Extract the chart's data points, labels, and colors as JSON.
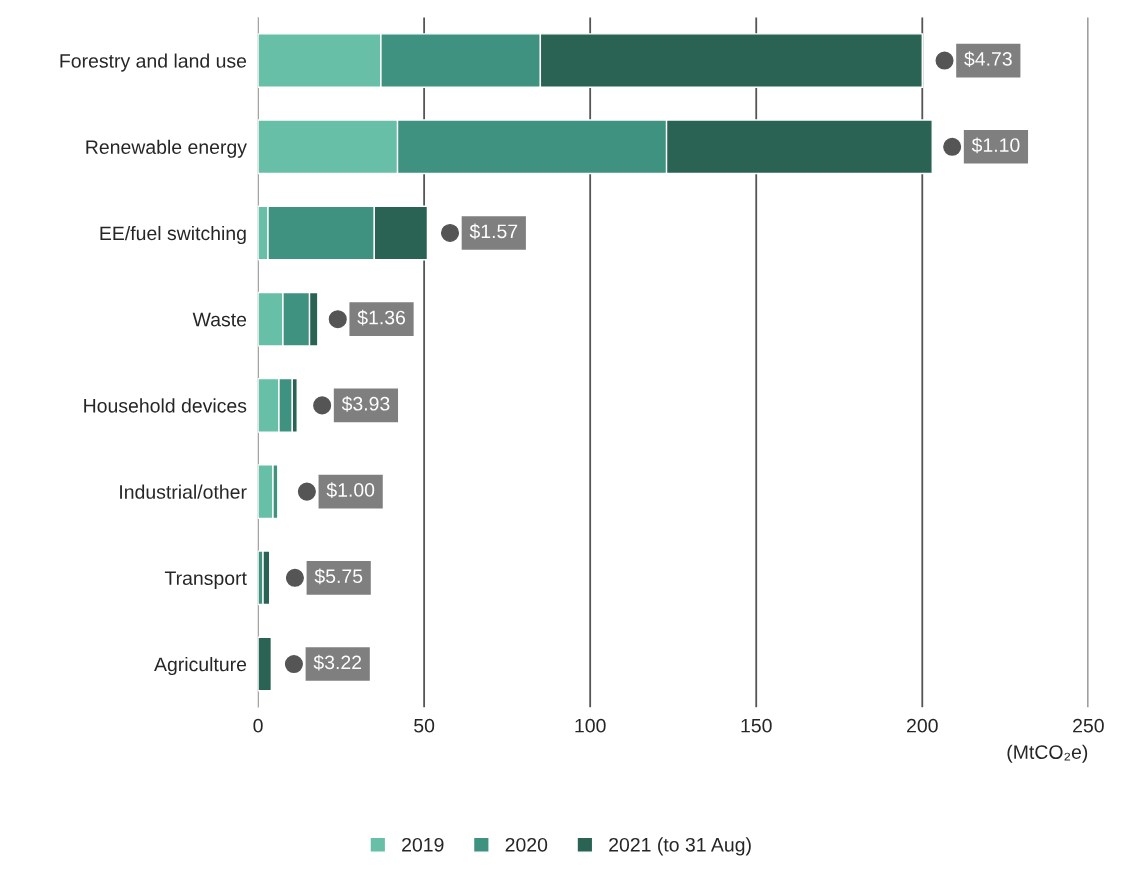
{
  "chart_data": {
    "type": "bar",
    "orientation": "horizontal",
    "stacked": true,
    "categories": [
      "Forestry and land use",
      "Renewable energy",
      "EE/fuel switching",
      "Waste",
      "Household devices",
      "Industrial/other",
      "Transport",
      "Agriculture"
    ],
    "series": [
      {
        "name": "2019",
        "color": "#66bfa6",
        "values": [
          37,
          42,
          3,
          7.5,
          6.3,
          4.5,
          null,
          null
        ]
      },
      {
        "name": "2020",
        "color": "#3f9180",
        "values": [
          48,
          81,
          32,
          8,
          4,
          1.5,
          1.5,
          null
        ]
      },
      {
        "name": "2021 (to 31 Aug)",
        "color": "#2a6354",
        "values": [
          115,
          80,
          16,
          2.5,
          1.5,
          0.3,
          2,
          4
        ]
      }
    ],
    "xlabel": "(MtCO₂e)",
    "xlim": [
      0,
      250
    ],
    "xticks": [
      0,
      50,
      100,
      150,
      200,
      250
    ],
    "grid": "x",
    "legend": "bottom",
    "annotations": [
      {
        "text": "$4.73",
        "x": 206.7,
        "y": "Forestry and land use"
      },
      {
        "text": "$1.10",
        "x": 209,
        "y": "Renewable energy"
      },
      {
        "text": "$1.57",
        "x": 57.8,
        "y": "EE/fuel switching"
      },
      {
        "text": "$1.36",
        "x": 24,
        "y": "Waste"
      },
      {
        "text": "$3.93",
        "x": 19.3,
        "y": "Household devices"
      },
      {
        "text": "$1.00",
        "x": 14.7,
        "y": "Industrial/other"
      },
      {
        "text": "$5.75",
        "x": 11.1,
        "y": "Transport"
      },
      {
        "text": "$3.22",
        "x": 10.8,
        "y": "Agriculture"
      }
    ]
  }
}
